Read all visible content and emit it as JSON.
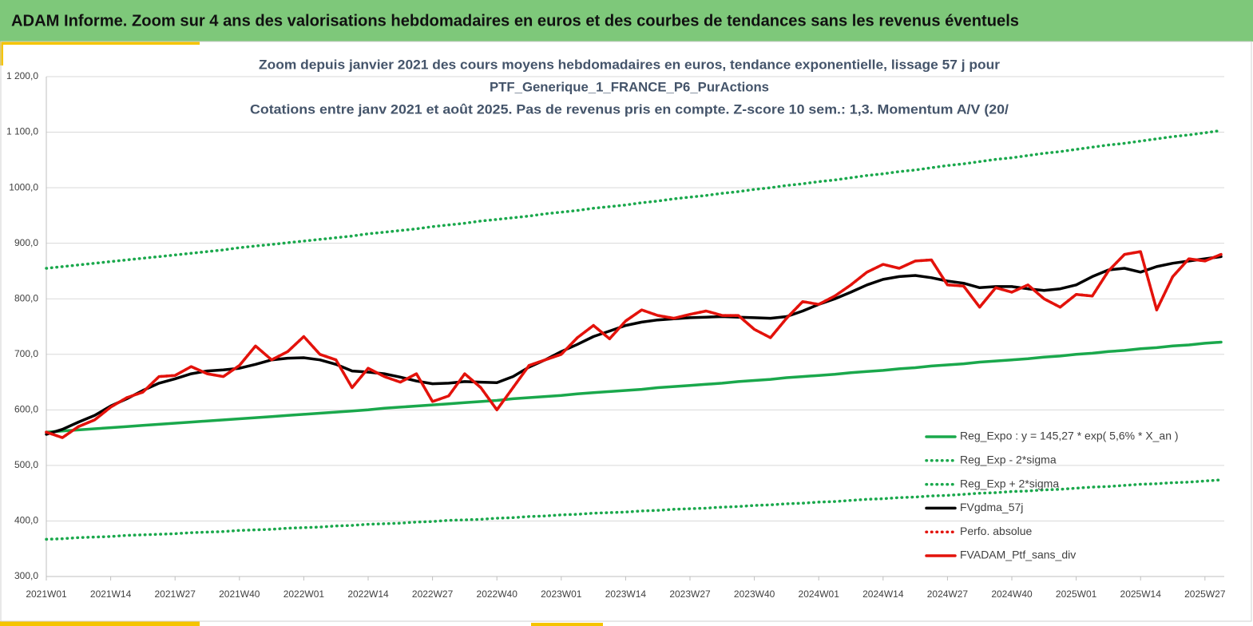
{
  "header": {
    "title": "ADAM Informe. Zoom sur 4 ans des valorisations hebdomadaires en euros et des courbes de tendances sans les revenus éventuels"
  },
  "chart_data": {
    "type": "line",
    "title": [
      "Zoom depuis janvier 2021 des cours moyens hebdomadaires  en euros, tendance exponentielle, lissage 57 j pour",
      "PTF_Generique_1_FRANCE_P6_PurActions",
      "Cotations entre janv 2021 et août 2025. Pas de revenus pris en compte. Z-score 10 sem.: 1,3. Momentum A/V (20/"
    ],
    "categories": [
      "2021W01",
      null,
      null,
      null,
      "2021W14",
      null,
      null,
      null,
      "2021W27",
      null,
      null,
      null,
      "2021W40",
      null,
      null,
      null,
      "2022W01",
      null,
      null,
      null,
      "2022W14",
      null,
      null,
      null,
      "2022W27",
      null,
      null,
      null,
      "2022W40",
      null,
      null,
      null,
      "2023W01",
      null,
      null,
      null,
      "2023W14",
      null,
      null,
      null,
      "2023W27",
      null,
      null,
      null,
      "2023W40",
      null,
      null,
      null,
      "2024W01",
      null,
      null,
      null,
      "2024W14",
      null,
      null,
      null,
      "2024W27",
      null,
      null,
      null,
      "2024W40",
      null,
      null,
      null,
      "2025W01",
      null,
      null,
      null,
      "2025W14",
      null,
      null,
      null,
      "2025W27",
      null
    ],
    "ylim": [
      300,
      1200
    ],
    "yticks": [
      {
        "value": 300,
        "label": "300,0"
      },
      {
        "value": 400,
        "label": "400,0"
      },
      {
        "value": 500,
        "label": "500,0"
      },
      {
        "value": 600,
        "label": "600,0"
      },
      {
        "value": 700,
        "label": "700,0"
      },
      {
        "value": 800,
        "label": "800,0"
      },
      {
        "value": 900,
        "label": "900,0"
      },
      {
        "value": 1000,
        "label": "1000,0"
      },
      {
        "value": 1100,
        "label": "1 100,0"
      },
      {
        "value": 1200,
        "label": "1 200,0"
      }
    ],
    "grid": true,
    "legend": "lower-right",
    "series": [
      {
        "name": "Reg_Expo : y = 145,27 * exp( 5,6% *  X_an )",
        "color": "#1aa84c",
        "dash": "solid",
        "values": [
          560,
          562,
          564,
          566,
          568,
          570,
          572,
          574,
          576,
          578,
          580,
          582,
          584,
          586,
          588,
          590,
          592,
          594,
          596,
          598,
          600,
          603,
          605,
          607,
          609,
          611,
          613,
          615,
          617,
          620,
          622,
          624,
          626,
          629,
          631,
          633,
          635,
          637,
          640,
          642,
          644,
          646,
          648,
          651,
          653,
          655,
          658,
          660,
          662,
          664,
          667,
          669,
          671,
          674,
          676,
          679,
          681,
          683,
          686,
          688,
          690,
          692,
          695,
          697,
          700,
          702,
          705,
          707,
          710,
          712,
          715,
          717,
          720,
          722
        ]
      },
      {
        "name": "Reg_Exp - 2*sigma",
        "color": "#1aa84c",
        "dash": "dotted",
        "values": [
          367,
          368,
          370,
          371,
          372,
          374,
          375,
          376,
          377,
          379,
          380,
          381,
          383,
          384,
          385,
          387,
          388,
          389,
          391,
          392,
          394,
          395,
          396,
          398,
          399,
          401,
          402,
          403,
          405,
          406,
          408,
          409,
          411,
          412,
          414,
          415,
          416,
          418,
          419,
          421,
          422,
          423,
          425,
          426,
          428,
          429,
          431,
          432,
          434,
          435,
          437,
          439,
          440,
          442,
          443,
          445,
          446,
          448,
          450,
          451,
          453,
          454,
          456,
          457,
          459,
          461,
          462,
          464,
          466,
          467,
          469,
          470,
          472,
          474
        ]
      },
      {
        "name": "Reg_Exp + 2*sigma",
        "color": "#1aa84c",
        "dash": "dotted",
        "values": [
          855,
          858,
          861,
          864,
          867,
          870,
          873,
          876,
          879,
          882,
          885,
          888,
          892,
          895,
          898,
          901,
          904,
          907,
          910,
          913,
          917,
          920,
          923,
          926,
          930,
          933,
          936,
          940,
          943,
          946,
          949,
          953,
          956,
          959,
          963,
          966,
          969,
          973,
          976,
          980,
          983,
          986,
          990,
          993,
          997,
          1000,
          1004,
          1007,
          1011,
          1014,
          1018,
          1022,
          1025,
          1029,
          1032,
          1036,
          1040,
          1043,
          1047,
          1051,
          1054,
          1058,
          1062,
          1065,
          1069,
          1073,
          1077,
          1080,
          1084,
          1088,
          1092,
          1095,
          1099,
          1103
        ]
      },
      {
        "name": "FVgdma_57j",
        "color": "#000000",
        "dash": "solid",
        "values": [
          556,
          565,
          578,
          590,
          607,
          620,
          635,
          648,
          656,
          665,
          670,
          672,
          675,
          682,
          690,
          693,
          694,
          690,
          682,
          670,
          668,
          665,
          659,
          652,
          647,
          648,
          651,
          650,
          649,
          660,
          677,
          690,
          705,
          718,
          732,
          742,
          752,
          758,
          762,
          764,
          766,
          767,
          768,
          767,
          766,
          765,
          768,
          778,
          790,
          800,
          812,
          825,
          835,
          840,
          842,
          838,
          832,
          828,
          820,
          822,
          822,
          818,
          815,
          818,
          825,
          840,
          852,
          855,
          848,
          858,
          864,
          868,
          872,
          876
        ]
      },
      {
        "name": "Perfo. absolue",
        "color": "#e3120b",
        "dash": "dotted",
        "values": [
          560,
          550,
          570,
          582,
          605,
          622,
          632,
          660,
          662,
          678,
          665,
          660,
          680,
          715,
          690,
          705,
          732,
          700,
          690,
          640,
          675,
          660,
          650,
          665,
          615,
          625,
          665,
          640,
          600,
          640,
          680,
          690,
          700,
          730,
          752,
          728,
          760,
          780,
          770,
          765,
          772,
          778,
          770,
          770,
          745,
          730,
          765,
          795,
          790,
          805,
          825,
          848,
          862,
          855,
          868,
          870,
          825,
          823,
          785,
          820,
          812,
          825,
          800,
          785,
          808,
          805,
          850,
          880,
          885,
          780,
          840,
          872,
          868,
          880
        ]
      },
      {
        "name": "FVADAM_Ptf_sans_div",
        "color": "#e3120b",
        "dash": "solid",
        "values": [
          560,
          550,
          570,
          582,
          605,
          622,
          632,
          660,
          662,
          678,
          665,
          660,
          680,
          715,
          690,
          705,
          732,
          700,
          690,
          640,
          675,
          660,
          650,
          665,
          615,
          625,
          665,
          640,
          600,
          640,
          680,
          690,
          700,
          730,
          752,
          728,
          760,
          780,
          770,
          765,
          772,
          778,
          770,
          770,
          745,
          730,
          765,
          795,
          790,
          805,
          825,
          848,
          862,
          855,
          868,
          870,
          825,
          823,
          785,
          820,
          812,
          825,
          800,
          785,
          808,
          805,
          850,
          880,
          885,
          780,
          840,
          872,
          868,
          880
        ]
      }
    ]
  }
}
